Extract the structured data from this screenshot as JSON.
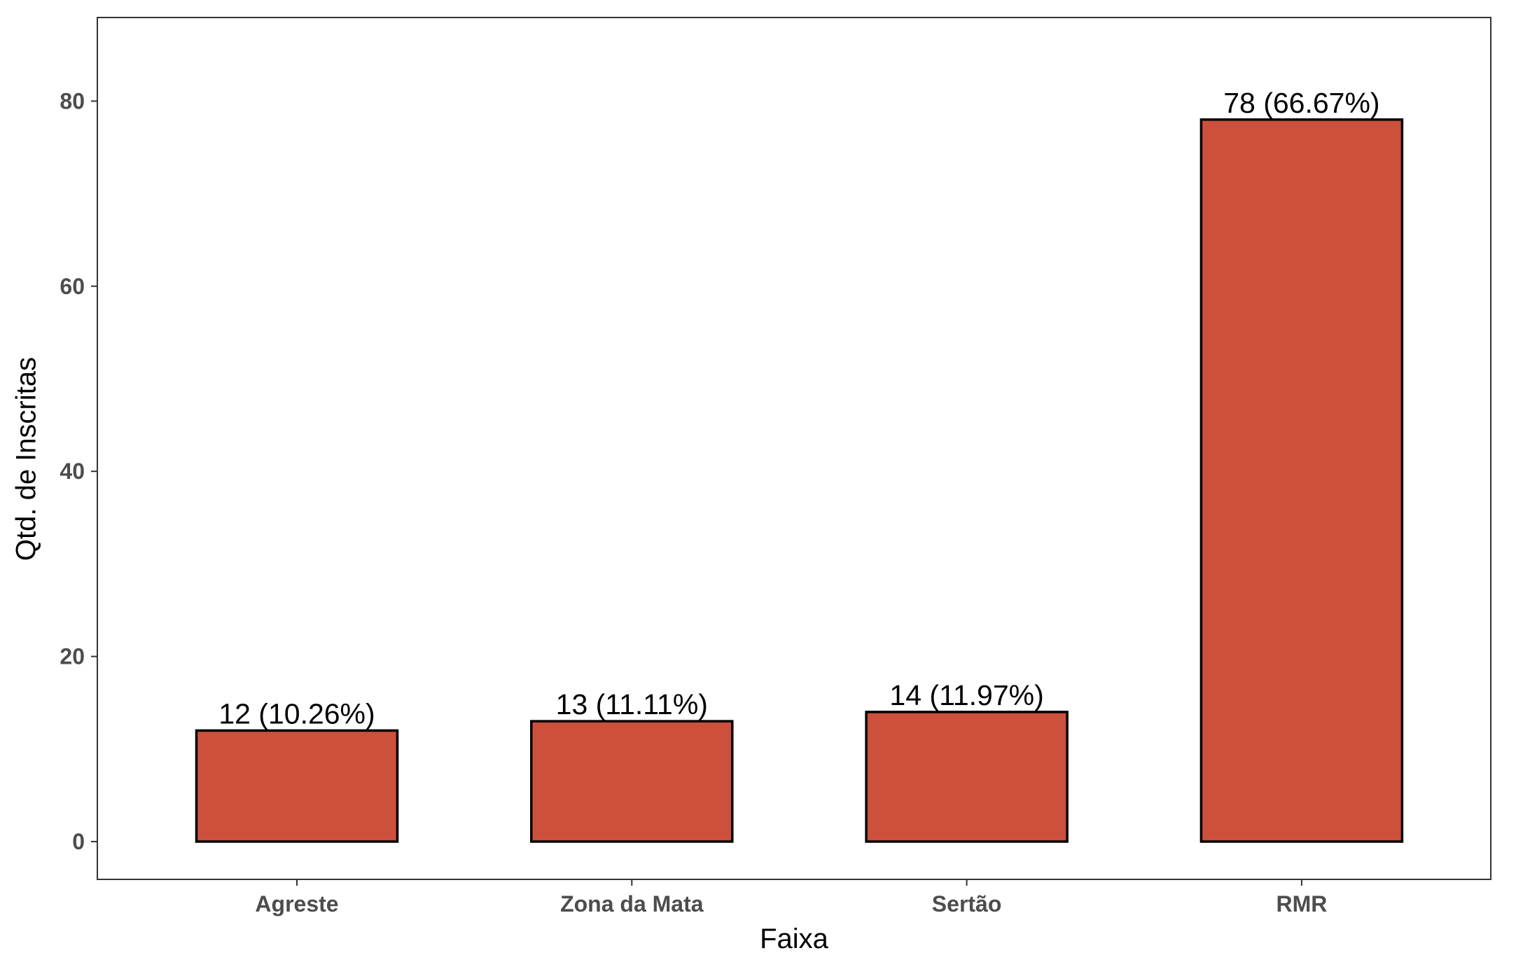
{
  "chart_data": {
    "type": "bar",
    "categories": [
      "Agreste",
      "Zona da Mata",
      "Sertão",
      "RMR"
    ],
    "values": [
      12,
      13,
      14,
      78
    ],
    "labels": [
      "12 (10.26%)",
      "13 (11.11%)",
      "14 (11.97%)",
      "78 (66.67%)"
    ],
    "title": "",
    "xlabel": "Faixa",
    "ylabel": "Qtd. de Inscritas",
    "ylim": [
      -4.2,
      89
    ],
    "yticks": [
      0,
      20,
      40,
      60,
      80
    ],
    "grid": false,
    "legend": "none",
    "colors": {
      "bar_fill": "#CD503C",
      "bar_stroke": "#000000",
      "panel_border": "#333333",
      "tick_text": "#4d4d4d"
    }
  }
}
